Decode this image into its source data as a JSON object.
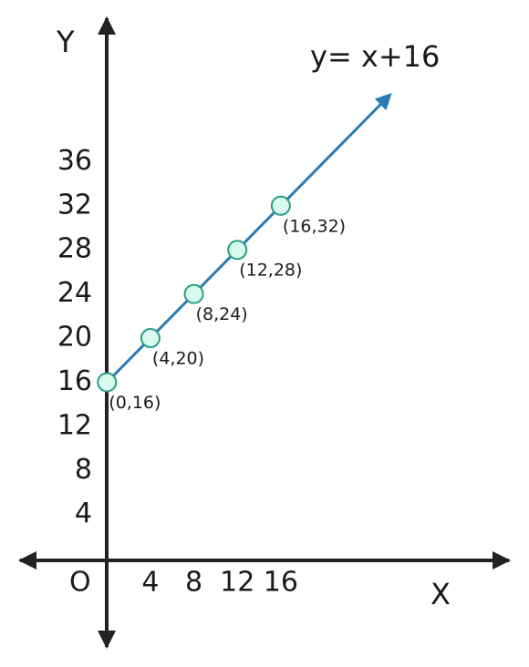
{
  "chart_data": {
    "type": "line",
    "annotation": "y= x+16",
    "x_label": "X",
    "y_label": "Y",
    "origin_label": "O",
    "x": [
      0,
      4,
      8,
      12,
      16
    ],
    "values": [
      16,
      20,
      24,
      28,
      32
    ],
    "value_labels": [
      "(0,16)",
      "(4,20)",
      "(8,24)",
      "(12,28)",
      "(16,32)"
    ],
    "color": "#2b7bb5",
    "marker_fill": "#d8fbee",
    "marker_stroke": "#2a9c86",
    "xlim": [
      -8,
      37
    ],
    "ylim": [
      -8,
      49
    ],
    "xticks": [
      4,
      8,
      12,
      16
    ],
    "yticks": [
      4,
      8,
      12,
      16,
      20,
      24,
      28,
      32,
      36
    ],
    "grid": false
  }
}
